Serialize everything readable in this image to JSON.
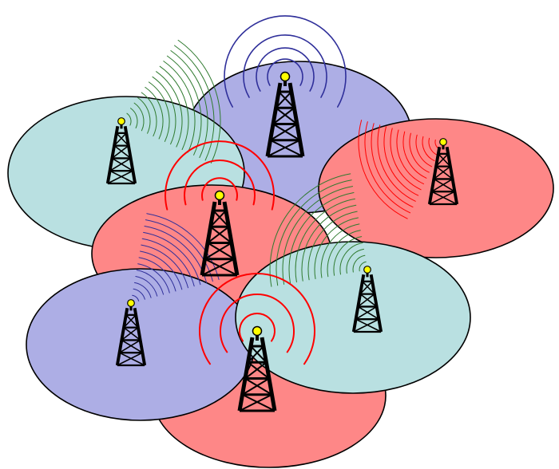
{
  "diagram": {
    "palette": {
      "teal": "#b9e0e1",
      "purple": "#adaee5",
      "red": "#fe8787",
      "outline": "#000000",
      "tower": "#000000",
      "antenna_light": "#ffff00",
      "wave_green": "#2f7a2f",
      "wave_blue": "#2f2f9a",
      "wave_red": "#ff0000"
    },
    "cells": [
      {
        "id": "cell-top-purple",
        "color": "purple"
      },
      {
        "id": "cell-left-teal",
        "color": "teal"
      },
      {
        "id": "cell-right-red",
        "color": "red"
      },
      {
        "id": "cell-center-red",
        "color": "red"
      },
      {
        "id": "cell-bottom-red",
        "color": "red"
      },
      {
        "id": "cell-bottom-left-purple",
        "color": "purple"
      },
      {
        "id": "cell-bottom-right-teal",
        "color": "teal"
      }
    ],
    "towers": [
      {
        "id": "tower-top",
        "wave_color": "wave_blue"
      },
      {
        "id": "tower-left",
        "wave_color": "wave_green"
      },
      {
        "id": "tower-right",
        "wave_color": "wave_red"
      },
      {
        "id": "tower-center",
        "wave_color": "wave_red"
      },
      {
        "id": "tower-bottom-left",
        "wave_color": "wave_blue"
      },
      {
        "id": "tower-bottom-right",
        "wave_color": "wave_green"
      },
      {
        "id": "tower-bottom",
        "wave_color": "wave_red"
      }
    ]
  }
}
